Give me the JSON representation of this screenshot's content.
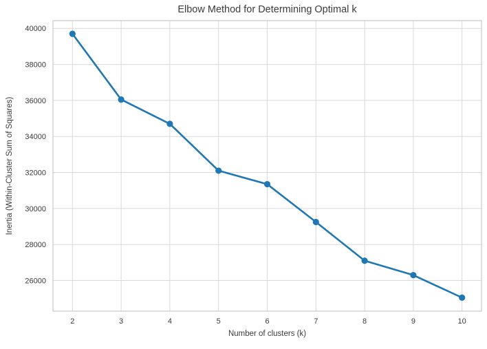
{
  "chart_data": {
    "type": "line",
    "title": "Elbow Method for Determining Optimal k",
    "xlabel": "Number of clusters (k)",
    "ylabel": "Inertia (Within-Cluster Sum of Squares)",
    "series": [
      {
        "name": "inertia",
        "x": [
          2,
          3,
          4,
          5,
          6,
          7,
          8,
          9,
          10
        ],
        "y": [
          39700,
          36050,
          34700,
          32100,
          31350,
          29250,
          27100,
          26300,
          25050
        ]
      }
    ],
    "x_ticks": [
      2,
      3,
      4,
      5,
      6,
      7,
      8,
      9,
      10
    ],
    "y_ticks": [
      26000,
      28000,
      30000,
      32000,
      34000,
      36000,
      38000,
      40000
    ],
    "xlim": [
      1.6,
      10.4
    ],
    "ylim": [
      24300,
      40430
    ],
    "grid": true,
    "legend": false,
    "marker": "o",
    "colors": {
      "line": "#1f77b4",
      "marker": "#1f77b4",
      "grid": "#d9d9d9",
      "spine": "#cccccc",
      "text": "#3a3a3a",
      "background": "#ffffff"
    }
  }
}
